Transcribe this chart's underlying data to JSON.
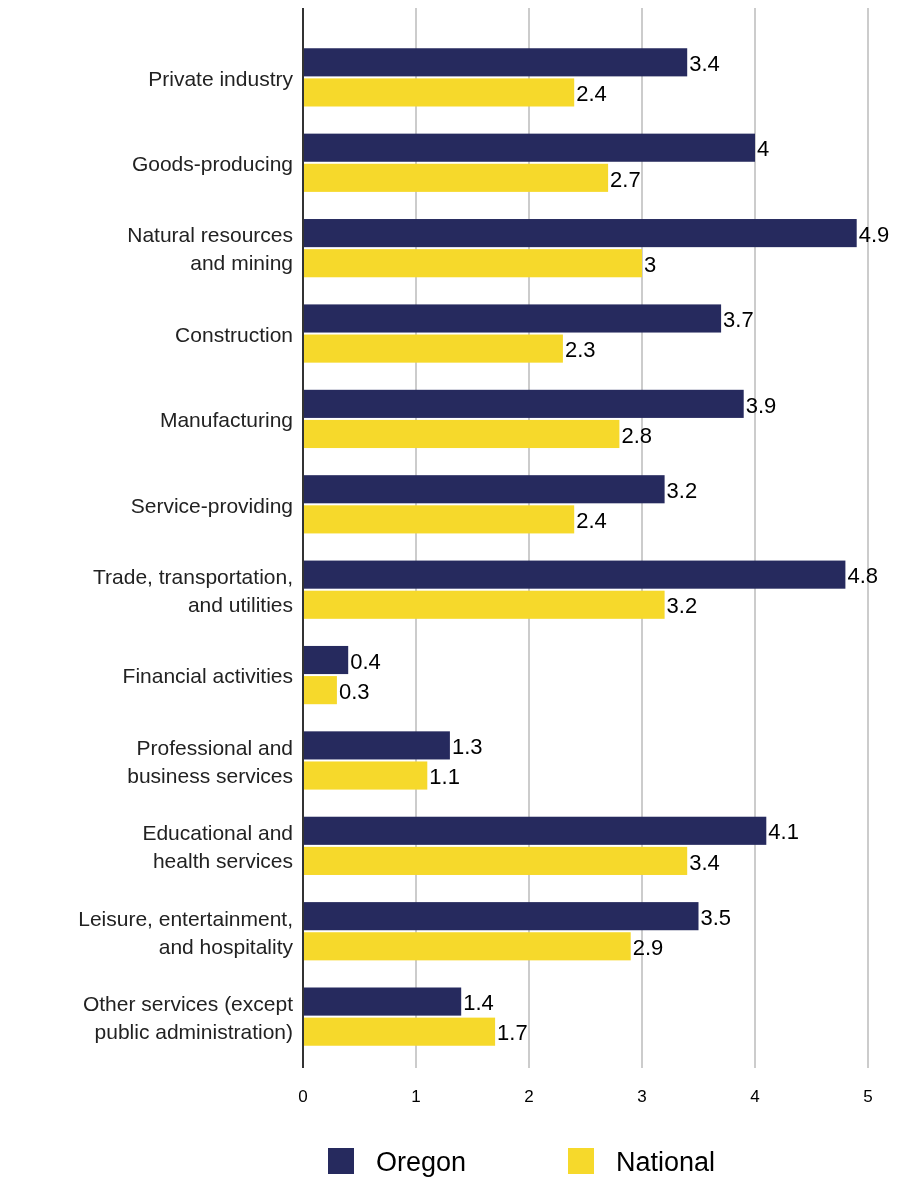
{
  "chart_data": {
    "type": "bar",
    "orientation": "horizontal",
    "categories": [
      "Private industry",
      "Goods-producing",
      "Natural resources\nand mining",
      "Construction",
      "Manufacturing",
      "Service-providing",
      "Trade, transportation,\nand utilities",
      "Financial activities",
      "Professional and\nbusiness services",
      "Educational and\nhealth services",
      "Leisure, entertainment,\nand hospitality",
      "Other services (except\npublic administration)"
    ],
    "series": [
      {
        "name": "Oregon",
        "color": "#262a5e",
        "values": [
          3.4,
          4,
          4.9,
          3.7,
          3.9,
          3.2,
          4.8,
          0.4,
          1.3,
          4.1,
          3.5,
          1.4
        ]
      },
      {
        "name": "National",
        "color": "#f6d92b",
        "values": [
          2.4,
          2.7,
          3,
          2.3,
          2.8,
          2.4,
          3.2,
          0.3,
          1.1,
          3.4,
          2.9,
          1.7
        ]
      }
    ],
    "xlim": [
      0,
      5
    ],
    "xticks": [
      0,
      1,
      2,
      3,
      4,
      5
    ],
    "grid": "x",
    "data_labels": true,
    "legend": "bottom"
  }
}
